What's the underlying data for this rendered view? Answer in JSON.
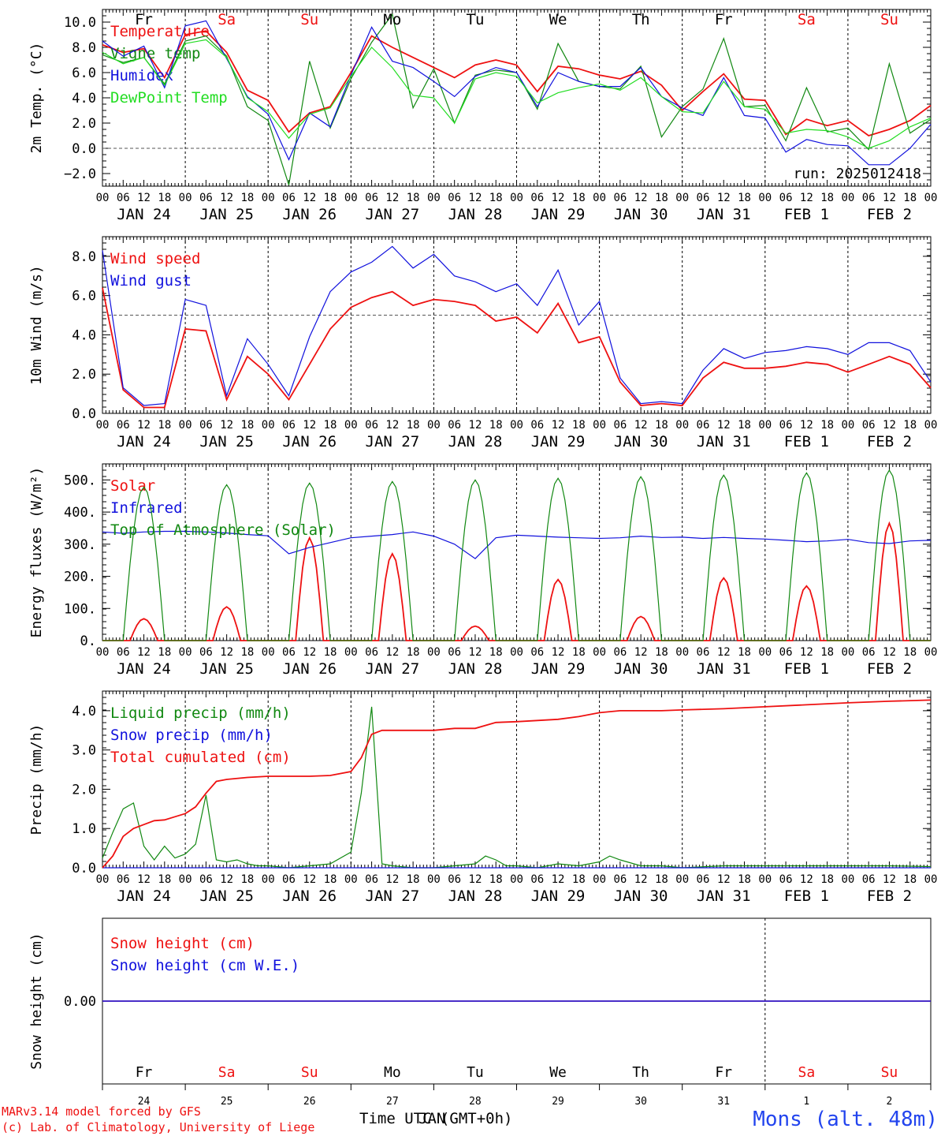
{
  "app": {
    "credit_line1": "MARv3.14 model forced by GFS",
    "credit_line2": "(c) Lab. of Climatology, University of Liege",
    "station": "Mons (alt. 48m)",
    "xlabel": "Time UTC (GMT+0h)",
    "xlabel_overlap": "JAN",
    "run_label": "run: 2025012418"
  },
  "colors": {
    "red": "#ee1111",
    "green": "#118811",
    "blue": "#1111dd",
    "lightgreen": "#22dd22",
    "ink": "#000000",
    "weekend": "#ee1111"
  },
  "days": {
    "names": [
      "Fr",
      "Sa",
      "Su",
      "Mo",
      "Tu",
      "We",
      "Th",
      "Fr",
      "Sa",
      "Su"
    ],
    "weekend": [
      false,
      true,
      true,
      false,
      false,
      false,
      false,
      false,
      true,
      true
    ],
    "dates": [
      "JAN 24",
      "JAN 25",
      "JAN 26",
      "JAN 27",
      "JAN 28",
      "JAN 29",
      "JAN 30",
      "JAN 31",
      "FEB  1",
      "FEB  2"
    ],
    "day_numbers": [
      "24",
      "25",
      "26",
      "27",
      "28",
      "29",
      "30",
      "31",
      "1",
      "2"
    ],
    "hour_ticks": [
      "00",
      "06",
      "12",
      "18"
    ],
    "final_tick": "00"
  },
  "chart_data": [
    {
      "type": "line",
      "ylabel": "2m Temp. (°C)",
      "ylim": [
        -3,
        11
      ],
      "yticks": [
        -2,
        0,
        2,
        4,
        6,
        8,
        10
      ],
      "ytick_labels": [
        "−2.0",
        "0.0",
        "2.0",
        "4.0",
        "6.0",
        "8.0",
        "10.0"
      ],
      "xlim_hours": [
        0,
        240
      ],
      "reference_line": 0,
      "series": [
        {
          "name": "Temperature",
          "color": "red",
          "x": [
            0,
            6,
            12,
            18,
            24,
            30,
            36,
            42,
            48,
            54,
            60,
            66,
            72,
            78,
            84,
            90,
            96,
            102,
            108,
            114,
            120,
            126,
            132,
            138,
            144,
            150,
            156,
            162,
            168,
            174,
            180,
            186,
            192,
            198,
            204,
            210,
            216,
            222,
            228,
            234,
            240
          ],
          "values": [
            8.2,
            7.6,
            7.9,
            5.6,
            9.0,
            9.3,
            7.6,
            4.6,
            3.8,
            1.3,
            2.8,
            3.3,
            6.0,
            8.9,
            8.0,
            7.2,
            6.4,
            5.6,
            6.6,
            7.0,
            6.6,
            4.5,
            6.5,
            6.3,
            5.8,
            5.5,
            6.1,
            5.0,
            3.0,
            4.5,
            5.9,
            3.9,
            3.8,
            1.1,
            2.3,
            1.8,
            2.2,
            1.0,
            1.5,
            2.2,
            3.4
          ]
        },
        {
          "name": "Vigne temp",
          "color": "green",
          "x": [
            0,
            6,
            12,
            18,
            24,
            30,
            36,
            42,
            48,
            54,
            60,
            66,
            72,
            78,
            84,
            90,
            96,
            102,
            108,
            114,
            120,
            126,
            132,
            138,
            144,
            150,
            156,
            162,
            168,
            174,
            180,
            186,
            192,
            198,
            204,
            210,
            216,
            222,
            228,
            234,
            240
          ],
          "values": [
            7.4,
            6.8,
            7.2,
            5.1,
            8.5,
            8.9,
            7.3,
            3.3,
            2.2,
            -2.9,
            6.9,
            1.6,
            5.5,
            8.4,
            10.6,
            3.2,
            6.3,
            2.0,
            5.8,
            6.2,
            6.0,
            3.1,
            8.3,
            5.3,
            4.9,
            4.7,
            6.5,
            0.9,
            3.3,
            4.7,
            8.7,
            3.3,
            3.4,
            0.6,
            4.8,
            1.3,
            1.6,
            -0.1,
            6.7,
            1.2,
            2.3
          ]
        },
        {
          "name": "Humidex",
          "color": "blue",
          "x": [
            0,
            6,
            12,
            18,
            24,
            30,
            36,
            42,
            48,
            54,
            60,
            66,
            72,
            78,
            84,
            90,
            96,
            102,
            108,
            114,
            120,
            126,
            132,
            138,
            144,
            150,
            156,
            162,
            168,
            174,
            180,
            186,
            192,
            198,
            204,
            210,
            216,
            222,
            228,
            234,
            240
          ],
          "values": [
            8.5,
            7.3,
            8.1,
            4.8,
            9.7,
            10.1,
            7.1,
            4.1,
            2.7,
            -0.9,
            2.8,
            1.7,
            5.8,
            9.6,
            6.9,
            6.4,
            5.3,
            4.1,
            5.7,
            6.4,
            6.0,
            3.3,
            6.0,
            5.3,
            4.9,
            4.9,
            6.4,
            4.1,
            3.2,
            2.6,
            5.6,
            2.6,
            2.4,
            -0.3,
            0.7,
            0.3,
            0.2,
            -1.3,
            -1.3,
            0.0,
            1.9
          ]
        },
        {
          "name": "DewPoint Temp",
          "color": "lightgreen",
          "x": [
            0,
            6,
            12,
            18,
            24,
            30,
            36,
            42,
            48,
            54,
            60,
            66,
            72,
            78,
            84,
            90,
            96,
            102,
            108,
            114,
            120,
            126,
            132,
            138,
            144,
            150,
            156,
            162,
            168,
            174,
            180,
            186,
            192,
            198,
            204,
            210,
            216,
            222,
            228,
            234,
            240
          ],
          "values": [
            7.6,
            6.7,
            7.2,
            5.0,
            8.3,
            8.6,
            7.2,
            4.0,
            2.9,
            0.8,
            2.7,
            3.2,
            5.7,
            8.0,
            6.4,
            4.2,
            4.0,
            2.0,
            5.5,
            6.0,
            5.7,
            3.6,
            4.4,
            4.8,
            5.1,
            4.6,
            5.6,
            4.1,
            2.9,
            2.8,
            5.3,
            3.3,
            3.1,
            1.2,
            1.5,
            1.4,
            0.9,
            0.0,
            0.6,
            1.7,
            2.4
          ]
        }
      ]
    },
    {
      "type": "line",
      "ylabel": "10m Wind (m/s)",
      "ylim": [
        0,
        9
      ],
      "yticks": [
        0,
        2,
        4,
        6,
        8
      ],
      "ytick_labels": [
        "0.0",
        "2.0",
        "4.0",
        "6.0",
        "8.0"
      ],
      "xlim_hours": [
        0,
        240
      ],
      "reference_line": 5,
      "series": [
        {
          "name": "Wind speed",
          "color": "red",
          "x": [
            0,
            6,
            12,
            18,
            24,
            30,
            36,
            42,
            48,
            54,
            60,
            66,
            72,
            78,
            84,
            90,
            96,
            102,
            108,
            114,
            120,
            126,
            132,
            138,
            144,
            150,
            156,
            162,
            168,
            174,
            180,
            186,
            192,
            198,
            204,
            210,
            216,
            222,
            228,
            234,
            240
          ],
          "values": [
            6.4,
            1.2,
            0.3,
            0.3,
            4.3,
            4.2,
            0.7,
            2.9,
            2.0,
            0.7,
            2.5,
            4.3,
            5.4,
            5.9,
            6.2,
            5.5,
            5.8,
            5.7,
            5.5,
            4.7,
            4.9,
            4.1,
            5.6,
            3.6,
            3.9,
            1.6,
            0.4,
            0.5,
            0.4,
            1.8,
            2.6,
            2.3,
            2.3,
            2.4,
            2.6,
            2.5,
            2.1,
            2.5,
            2.9,
            2.5,
            1.3
          ]
        },
        {
          "name": "Wind gust",
          "color": "blue",
          "x": [
            0,
            6,
            12,
            18,
            24,
            30,
            36,
            42,
            48,
            54,
            60,
            66,
            72,
            78,
            84,
            90,
            96,
            102,
            108,
            114,
            120,
            126,
            132,
            138,
            144,
            150,
            156,
            162,
            168,
            174,
            180,
            186,
            192,
            198,
            204,
            210,
            216,
            222,
            228,
            234,
            240
          ],
          "values": [
            8.3,
            1.3,
            0.4,
            0.5,
            5.8,
            5.5,
            0.9,
            3.8,
            2.5,
            0.9,
            3.9,
            6.2,
            7.2,
            7.7,
            8.5,
            7.4,
            8.1,
            7.0,
            6.7,
            6.2,
            6.6,
            5.5,
            7.3,
            4.5,
            5.7,
            1.8,
            0.5,
            0.6,
            0.5,
            2.2,
            3.3,
            2.8,
            3.1,
            3.2,
            3.4,
            3.3,
            3.0,
            3.6,
            3.6,
            3.2,
            1.6
          ]
        }
      ]
    },
    {
      "type": "line",
      "ylabel": "Energy fluxes (W/m²)",
      "ylim": [
        0,
        550
      ],
      "yticks": [
        0,
        100,
        200,
        300,
        400,
        500
      ],
      "ytick_labels": [
        "0.",
        "100.",
        "200.",
        "300.",
        "400.",
        "500."
      ],
      "xlim_hours": [
        0,
        240
      ],
      "series": [
        {
          "name": "Solar",
          "color": "red",
          "day_peaks": [
            68,
            105,
            320,
            270,
            45,
            190,
            75,
            195,
            170,
            365
          ]
        },
        {
          "name": "Infrared",
          "color": "blue",
          "x": [
            0,
            6,
            12,
            18,
            24,
            30,
            36,
            42,
            48,
            54,
            60,
            66,
            72,
            78,
            84,
            90,
            96,
            102,
            108,
            114,
            120,
            126,
            132,
            138,
            144,
            150,
            156,
            162,
            168,
            174,
            180,
            186,
            192,
            198,
            204,
            210,
            216,
            222,
            228,
            234,
            240
          ],
          "values": [
            338,
            334,
            338,
            340,
            340,
            338,
            335,
            330,
            326,
            270,
            290,
            305,
            320,
            325,
            330,
            338,
            325,
            300,
            255,
            320,
            328,
            325,
            322,
            320,
            318,
            320,
            325,
            321,
            322,
            318,
            321,
            318,
            316,
            312,
            308,
            310,
            315,
            305,
            302,
            310,
            312
          ]
        },
        {
          "name": "Top of Atmosphere (Solar)",
          "color": "green",
          "day_peaks": [
            478,
            485,
            490,
            495,
            500,
            505,
            510,
            515,
            522,
            530
          ]
        }
      ]
    },
    {
      "type": "line",
      "ylabel": "Precip (mm/h)",
      "ylim": [
        0,
        4.5
      ],
      "yticks": [
        0,
        1,
        2,
        3,
        4
      ],
      "ytick_labels": [
        "0.0",
        "1.0",
        "2.0",
        "3.0",
        "4.0"
      ],
      "xlim_hours": [
        0,
        240
      ],
      "series": [
        {
          "name": "Liquid precip (mm/h)",
          "color": "green",
          "x": [
            0,
            3,
            6,
            9,
            12,
            15,
            18,
            21,
            24,
            27,
            30,
            33,
            36,
            39,
            42,
            45,
            48,
            54,
            60,
            66,
            72,
            75,
            78,
            81,
            84,
            90,
            96,
            102,
            108,
            111,
            114,
            117,
            120,
            126,
            132,
            138,
            144,
            147,
            150,
            156,
            162,
            168,
            180,
            192,
            204,
            216,
            228,
            240
          ],
          "values": [
            0.25,
            0.9,
            1.5,
            1.65,
            0.55,
            0.2,
            0.55,
            0.25,
            0.35,
            0.6,
            1.85,
            0.2,
            0.15,
            0.2,
            0.1,
            0.05,
            0.05,
            0.0,
            0.05,
            0.1,
            0.4,
            1.9,
            4.1,
            0.1,
            0.05,
            0.0,
            0.0,
            0.05,
            0.1,
            0.3,
            0.2,
            0.05,
            0.05,
            0.0,
            0.1,
            0.05,
            0.15,
            0.3,
            0.2,
            0.05,
            0.05,
            0.0,
            0.05,
            0.05,
            0.05,
            0.05,
            0.05,
            0.03
          ]
        },
        {
          "name": "Snow precip (mm/h)",
          "color": "blue",
          "x": [
            0,
            240
          ],
          "values": [
            0.0,
            0.0
          ]
        },
        {
          "name": "Total cumulated (cm)",
          "color": "red",
          "x": [
            0,
            3,
            6,
            9,
            12,
            15,
            18,
            21,
            24,
            27,
            30,
            33,
            36,
            42,
            48,
            54,
            60,
            66,
            72,
            75,
            78,
            81,
            84,
            90,
            96,
            102,
            108,
            114,
            120,
            126,
            132,
            138,
            144,
            150,
            156,
            162,
            168,
            180,
            192,
            204,
            216,
            228,
            240
          ],
          "values": [
            0.0,
            0.3,
            0.8,
            1.0,
            1.1,
            1.2,
            1.22,
            1.3,
            1.38,
            1.55,
            1.9,
            2.2,
            2.25,
            2.3,
            2.33,
            2.33,
            2.33,
            2.35,
            2.45,
            2.8,
            3.4,
            3.5,
            3.5,
            3.5,
            3.5,
            3.55,
            3.55,
            3.7,
            3.72,
            3.75,
            3.78,
            3.85,
            3.95,
            4.0,
            4.0,
            4.0,
            4.02,
            4.05,
            4.1,
            4.15,
            4.2,
            4.24,
            4.27
          ]
        }
      ]
    },
    {
      "type": "line",
      "ylabel": "Snow height (cm)",
      "ytick_labels": [
        "0.00"
      ],
      "xlim_hours": [
        0,
        240
      ],
      "series": [
        {
          "name": "Snow height (cm)",
          "color": "red",
          "x": [
            0,
            240
          ],
          "values": [
            0,
            0
          ]
        },
        {
          "name": "Snow height (cm W.E.)",
          "color": "blue",
          "x": [
            0,
            240
          ],
          "values": [
            0,
            0
          ]
        }
      ]
    }
  ]
}
